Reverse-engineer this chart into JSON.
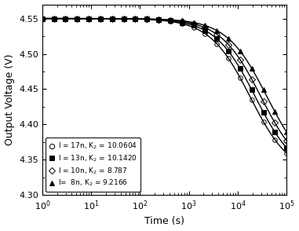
{
  "title": "",
  "xlabel": "Time (s)",
  "ylabel": "Output Voltage (V)",
  "xlim": [
    1.0,
    100000.0
  ],
  "ylim": [
    4.3,
    4.57
  ],
  "yticks": [
    4.3,
    4.35,
    4.4,
    4.45,
    4.5,
    4.55
  ],
  "series": [
    {
      "label": "I = 17n, K$_2$ = 10.0604",
      "marker": "o",
      "fillstyle": "none",
      "t_half": 18000,
      "exponent": 1.05
    },
    {
      "label": "I = 13n, K$_2$ = 10.1420",
      "marker": "s",
      "fillstyle": "full",
      "t_half": 23000,
      "exponent": 1.05
    },
    {
      "label": "I = 10n, K$_2$ = 8.787",
      "marker": "D",
      "fillstyle": "none",
      "t_half": 30000,
      "exponent": 1.05
    },
    {
      "label": "I=  8n, K$_2$ = 9.2166",
      "marker": "^",
      "fillstyle": "full",
      "t_half": 40000,
      "exponent": 1.05
    }
  ],
  "V0": 4.55,
  "Vf": 4.328,
  "color": "black",
  "background_color": "#ffffff",
  "n_line_pts": 600,
  "n_marker_pts": 22,
  "marker_size": 4,
  "linewidth": 1.0
}
